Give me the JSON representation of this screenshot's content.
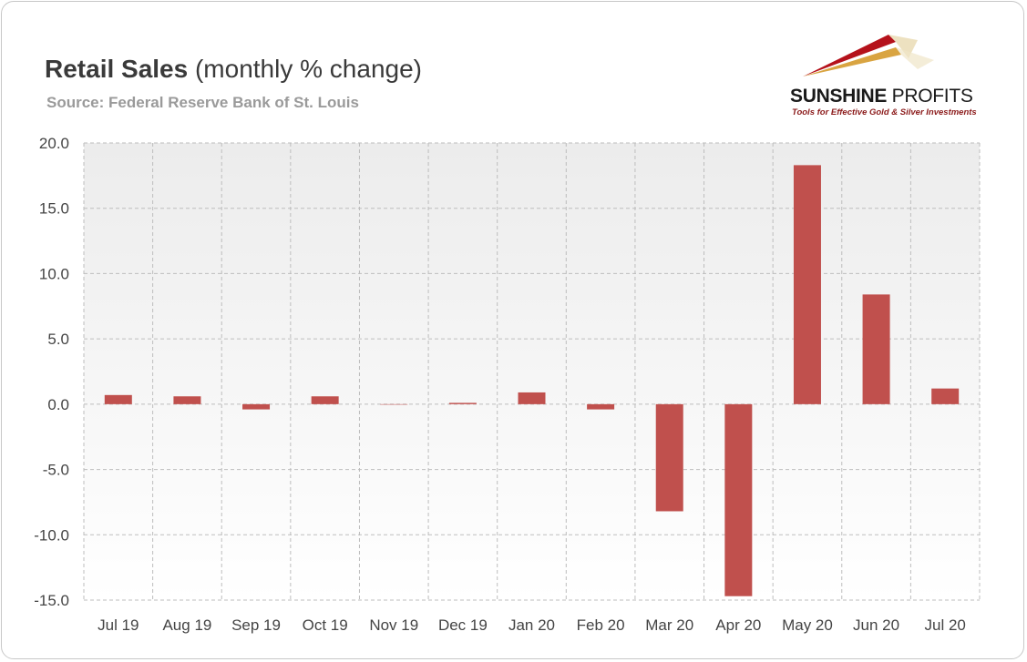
{
  "header": {
    "title_bold": "Retail Sales",
    "title_rest": " (monthly % change)",
    "source": "Source: Federal Reserve Bank of St. Louis"
  },
  "logo": {
    "name_part1": "SUNSHINE",
    "name_part2": " PROFITS",
    "tagline": "Tools for Effective Gold & Silver Investments",
    "colors": [
      "#b5121b",
      "#d9a441",
      "#e8d9b0"
    ]
  },
  "chart_data": {
    "type": "bar",
    "categories": [
      "Jul 19",
      "Aug 19",
      "Sep 19",
      "Oct 19",
      "Nov 19",
      "Dec 19",
      "Jan 20",
      "Feb 20",
      "Mar 20",
      "Apr 20",
      "May 20",
      "Jun 20",
      "Jul 20"
    ],
    "values": [
      0.7,
      0.6,
      -0.4,
      0.6,
      0.0,
      0.1,
      0.9,
      -0.4,
      -8.2,
      -14.7,
      18.3,
      8.4,
      1.2
    ],
    "title": "",
    "xlabel": "",
    "ylabel": "",
    "ylim": [
      -15,
      20
    ],
    "yticks": [
      "20.0",
      "15.0",
      "10.0",
      "5.0",
      "0.0",
      "-5.0",
      "-10.0",
      "-15.0"
    ],
    "ytick_values": [
      20,
      15,
      10,
      5,
      0,
      -5,
      -10,
      -15
    ],
    "bar_color": "#c0504d",
    "grid": true,
    "legend": "none"
  }
}
